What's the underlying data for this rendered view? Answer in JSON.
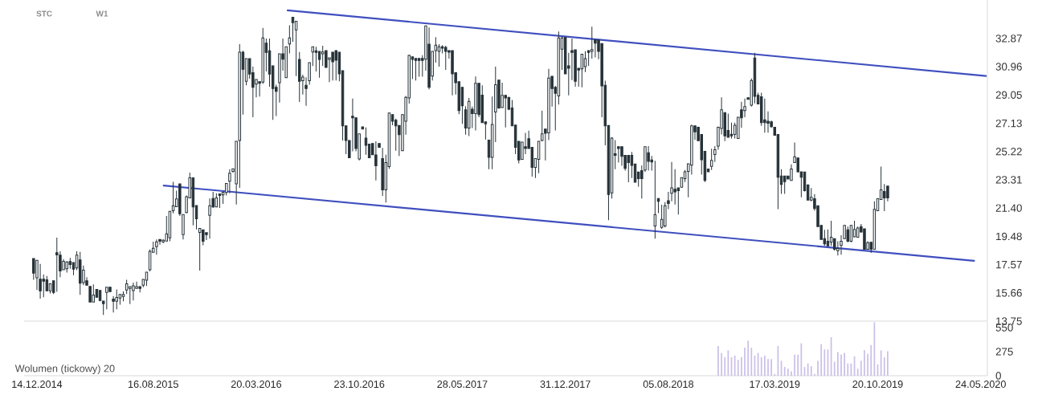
{
  "chart_data": [
    {
      "type": "candlestick",
      "color": "#263238",
      "x": [
        "2014-12-07",
        "2014-12-14",
        "2014-12-21",
        "2014-12-28",
        "2015-01-04",
        "2015-01-11",
        "2015-01-18",
        "2015-01-25",
        "2015-02-01",
        "2015-02-08",
        "2015-02-15",
        "2015-02-22",
        "2015-03-01",
        "2015-03-08",
        "2015-03-15",
        "2015-03-22",
        "2015-03-29",
        "2015-04-05",
        "2015-04-12",
        "2015-04-19",
        "2015-04-26",
        "2015-05-03",
        "2015-05-10",
        "2015-05-17",
        "2015-05-24",
        "2015-05-31",
        "2015-06-07",
        "2015-06-14",
        "2015-06-21",
        "2015-06-28",
        "2015-07-05",
        "2015-07-12",
        "2015-07-19",
        "2015-07-26",
        "2015-08-02",
        "2015-08-09",
        "2015-08-16",
        "2015-08-23",
        "2015-08-30",
        "2015-09-06",
        "2015-09-13",
        "2015-09-20",
        "2015-09-27",
        "2015-10-04",
        "2015-10-11",
        "2015-10-18",
        "2015-10-25",
        "2015-11-01",
        "2015-11-08",
        "2015-11-15",
        "2015-11-22",
        "2015-11-29",
        "2015-12-06",
        "2015-12-13",
        "2015-12-20",
        "2015-12-27",
        "2016-01-03",
        "2016-01-10",
        "2016-01-17",
        "2016-01-24",
        "2016-01-31",
        "2016-02-07",
        "2016-02-14",
        "2016-02-21",
        "2016-02-28",
        "2016-03-06",
        "2016-03-13",
        "2016-03-20",
        "2016-03-27",
        "2016-04-03",
        "2016-04-10",
        "2016-04-17",
        "2016-04-24",
        "2016-05-01",
        "2016-05-08",
        "2016-05-15",
        "2016-05-22",
        "2016-05-29",
        "2016-06-05",
        "2016-06-12",
        "2016-06-19",
        "2016-06-26",
        "2016-07-03",
        "2016-07-10",
        "2016-07-17",
        "2016-07-24",
        "2016-07-31",
        "2016-08-07",
        "2016-08-14",
        "2016-08-21",
        "2016-08-28",
        "2016-09-04",
        "2016-09-11",
        "2016-09-18",
        "2016-09-25",
        "2016-10-02",
        "2016-10-09",
        "2016-10-16",
        "2016-10-23",
        "2016-10-30",
        "2016-11-06",
        "2016-11-13",
        "2016-11-20",
        "2016-11-27",
        "2016-12-04",
        "2016-12-11",
        "2016-12-18",
        "2016-12-25",
        "2017-01-01",
        "2017-01-08",
        "2017-01-15",
        "2017-01-22",
        "2017-01-29",
        "2017-02-05",
        "2017-02-12",
        "2017-02-19",
        "2017-02-26",
        "2017-03-05",
        "2017-03-12",
        "2017-03-19",
        "2017-03-26",
        "2017-04-02",
        "2017-04-09",
        "2017-04-16",
        "2017-04-23",
        "2017-04-30",
        "2017-05-07",
        "2017-05-14",
        "2017-05-21",
        "2017-05-28",
        "2017-06-04",
        "2017-06-11",
        "2017-06-18",
        "2017-06-25",
        "2017-07-02",
        "2017-07-09",
        "2017-07-16",
        "2017-07-23",
        "2017-07-30",
        "2017-08-06",
        "2017-08-13",
        "2017-08-20",
        "2017-08-27",
        "2017-09-03",
        "2017-09-10",
        "2017-09-17",
        "2017-09-24",
        "2017-10-01",
        "2017-10-08",
        "2017-10-15",
        "2017-10-22",
        "2017-10-29",
        "2017-11-05",
        "2017-11-12",
        "2017-11-19",
        "2017-11-26",
        "2017-12-03",
        "2017-12-10",
        "2017-12-17",
        "2017-12-24",
        "2017-12-31",
        "2018-01-07",
        "2018-01-14",
        "2018-01-21",
        "2018-01-28",
        "2018-02-04",
        "2018-02-11",
        "2018-02-18",
        "2018-02-25",
        "2018-03-04",
        "2018-03-11",
        "2018-03-18",
        "2018-03-25",
        "2018-04-01",
        "2018-04-08",
        "2018-04-15",
        "2018-04-22",
        "2018-04-29",
        "2018-05-06",
        "2018-05-13",
        "2018-05-20",
        "2018-05-27",
        "2018-06-03",
        "2018-06-10",
        "2018-06-17",
        "2018-06-24",
        "2018-07-01",
        "2018-07-08",
        "2018-07-15",
        "2018-07-22",
        "2018-07-29",
        "2018-08-05",
        "2018-08-12",
        "2018-08-19",
        "2018-08-26",
        "2018-09-02",
        "2018-09-09",
        "2018-09-16",
        "2018-09-23",
        "2018-09-30",
        "2018-10-07",
        "2018-10-14",
        "2018-10-21",
        "2018-10-28",
        "2018-11-04",
        "2018-11-11",
        "2018-11-18",
        "2018-11-25",
        "2018-12-02",
        "2018-12-09",
        "2018-12-16",
        "2018-12-23",
        "2018-12-30",
        "2019-01-06",
        "2019-01-13",
        "2019-01-20",
        "2019-01-27",
        "2019-02-03",
        "2019-02-10",
        "2019-02-17",
        "2019-02-24",
        "2019-03-03",
        "2019-03-10",
        "2019-03-17",
        "2019-03-24",
        "2019-03-31",
        "2019-04-07",
        "2019-04-14",
        "2019-04-21",
        "2019-04-28",
        "2019-05-05",
        "2019-05-12",
        "2019-05-19",
        "2019-05-26",
        "2019-06-02",
        "2019-06-09",
        "2019-06-16",
        "2019-06-23",
        "2019-06-30",
        "2019-07-07",
        "2019-07-14",
        "2019-07-21",
        "2019-07-28",
        "2019-08-04",
        "2019-08-11",
        "2019-08-18",
        "2019-08-25",
        "2019-09-01",
        "2019-09-08",
        "2019-09-15",
        "2019-09-22",
        "2019-09-29",
        "2019-10-06",
        "2019-10-13",
        "2019-10-20",
        "2019-10-27",
        "2019-11-03",
        "2019-11-10"
      ],
      "ohlc": [
        [
          17.98,
          17.98,
          16.54,
          16.99
        ],
        [
          16.68,
          17.87,
          15.85,
          17.87
        ],
        [
          16.59,
          17.62,
          15.27,
          15.8
        ],
        [
          16.59,
          16.9,
          15.36,
          16.45
        ],
        [
          16.54,
          16.81,
          15.8,
          15.8
        ],
        [
          15.8,
          16.32,
          15.63,
          16.27
        ],
        [
          16.48,
          16.48,
          15.58,
          15.69
        ],
        [
          18.38,
          19.4,
          15.73,
          18.23
        ],
        [
          18.21,
          18.48,
          16.72,
          17.15
        ],
        [
          17.22,
          17.94,
          17.22,
          17.8
        ],
        [
          17.29,
          17.8,
          17.04,
          17.76
        ],
        [
          17.78,
          18.02,
          17.29,
          17.58
        ],
        [
          17.71,
          17.71,
          16.86,
          17.26
        ],
        [
          17.35,
          18.48,
          17.2,
          18.21
        ],
        [
          17.89,
          18.43,
          15.53,
          16.32
        ],
        [
          16.36,
          17.51,
          16.18,
          17.2
        ],
        [
          16.48,
          16.72,
          16.18,
          16.18
        ],
        [
          16.1,
          16.1,
          15.04,
          15.04
        ],
        [
          15.04,
          16.23,
          15.04,
          15.51
        ],
        [
          15.89,
          15.89,
          15.36,
          15.36
        ],
        [
          15.83,
          15.83,
          15.09,
          15.15
        ],
        [
          15.11,
          15.11,
          14.17,
          14.93
        ],
        [
          15.69,
          16.05,
          14.55,
          16.05
        ],
        [
          16.05,
          16.05,
          15.74,
          15.74
        ],
        [
          15.24,
          15.45,
          14.34,
          15.09
        ],
        [
          15.09,
          15.89,
          14.55,
          15.35
        ],
        [
          15.31,
          15.56,
          14.86,
          15.56
        ],
        [
          15.42,
          15.76,
          15.09,
          15.56
        ],
        [
          15.85,
          16.54,
          15.58,
          16.27
        ],
        [
          15.96,
          16.09,
          14.91,
          16.09
        ],
        [
          15.81,
          16.36,
          15.15,
          16.14
        ],
        [
          15.96,
          16.43,
          15.96,
          16.09
        ],
        [
          16.09,
          16.09,
          15.69,
          15.96
        ],
        [
          16.18,
          16.57,
          16.05,
          16.57
        ],
        [
          16.52,
          17.06,
          16.12,
          17.06
        ],
        [
          17.22,
          18.59,
          17.11,
          18.47
        ],
        [
          18.41,
          19.13,
          18.41,
          18.68
        ],
        [
          18.79,
          19.28,
          18.25,
          19.11
        ],
        [
          19.28,
          19.28,
          18.92,
          19.15
        ],
        [
          19.11,
          19.29,
          19.02,
          19.22
        ],
        [
          19.17,
          20.86,
          19.17,
          19.66
        ],
        [
          19.38,
          21.17,
          19.15,
          21.17
        ],
        [
          21.22,
          23.17,
          21.04,
          21.55
        ],
        [
          21.49,
          22.58,
          21.49,
          22.02
        ],
        [
          23.03,
          23.03,
          20.87,
          21.01
        ],
        [
          19.6,
          20.96,
          19.28,
          20.96
        ],
        [
          21.1,
          22.25,
          21.05,
          22.16
        ],
        [
          22.09,
          23.79,
          22.09,
          23.44
        ],
        [
          23.44,
          23.44,
          20.23,
          21.48
        ],
        [
          21.57,
          21.57,
          19.96,
          20.67
        ],
        [
          19.75,
          20.02,
          17.17,
          20.02
        ],
        [
          19.93,
          19.93,
          18.88,
          19.15
        ],
        [
          19.73,
          19.73,
          19.24,
          19.6
        ],
        [
          20.9,
          22.04,
          19.33,
          21.55
        ],
        [
          22.04,
          22.49,
          21.41,
          21.48
        ],
        [
          21.48,
          22.4,
          21.48,
          22.09
        ],
        [
          22.36,
          22.36,
          21.41,
          22.25
        ],
        [
          22.29,
          22.47,
          21.68,
          22.47
        ],
        [
          22.45,
          23.06,
          22.25,
          23.06
        ],
        [
          23.21,
          24.02,
          22.4,
          23.75
        ],
        [
          23.88,
          24.06,
          23.79,
          24.06
        ],
        [
          23.03,
          25.91,
          21.64,
          25.91
        ],
        [
          25.97,
          32.49,
          22.76,
          31.94
        ],
        [
          31.94,
          32.04,
          27.72,
          30.78
        ],
        [
          29.97,
          31.5,
          29.7,
          31.5
        ],
        [
          31.5,
          31.5,
          30.15,
          30.46
        ],
        [
          30.55,
          30.96,
          27.54,
          29.56
        ],
        [
          29.78,
          30.1,
          28.89,
          30.1
        ],
        [
          29.95,
          29.95,
          28.94,
          29.83
        ],
        [
          29.92,
          33.58,
          29.79,
          32.91
        ],
        [
          32.55,
          32.86,
          30.64,
          31.92
        ],
        [
          32.04,
          32.86,
          29.61,
          30.46
        ],
        [
          31.02,
          31.02,
          27.36,
          29.48
        ],
        [
          29.57,
          29.74,
          27.63,
          29.29
        ],
        [
          29.88,
          31.83,
          28.53,
          31.83
        ],
        [
          31.83,
          32.86,
          30.69,
          31.47
        ],
        [
          30.21,
          32.31,
          30.21,
          32.31
        ],
        [
          32.5,
          33.76,
          31.86,
          32.91
        ],
        [
          34.3,
          34.3,
          32.64,
          33.94
        ],
        [
          33.45,
          34.03,
          30.33,
          34.03
        ],
        [
          31.45,
          31.95,
          28.58,
          29.97
        ],
        [
          30.01,
          30.42,
          29.07,
          30.26
        ],
        [
          29.7,
          30.24,
          28.31,
          29.48
        ],
        [
          30.01,
          31.23,
          29.74,
          31.23
        ],
        [
          31.95,
          32.31,
          31.0,
          32.31
        ],
        [
          32.04,
          32.31,
          30.64,
          31.92
        ],
        [
          31.99,
          31.99,
          30.21,
          31.45
        ],
        [
          31.83,
          32.37,
          31.0,
          31.95
        ],
        [
          32.05,
          32.05,
          30.91,
          30.91
        ],
        [
          31.45,
          31.56,
          29.92,
          31.56
        ],
        [
          31.94,
          31.94,
          30.03,
          31.29
        ],
        [
          32.05,
          32.05,
          30.03,
          31.4
        ],
        [
          31.94,
          31.94,
          29.97,
          30.48
        ],
        [
          30.69,
          30.69,
          25.97,
          26.96
        ],
        [
          26.96,
          26.96,
          25.05,
          25.97
        ],
        [
          25.97,
          25.97,
          24.8,
          24.8
        ],
        [
          27.61,
          28.8,
          25.23,
          27.5
        ],
        [
          27.5,
          27.5,
          25.23,
          25.43
        ],
        [
          24.72,
          26.42,
          24.63,
          26.42
        ],
        [
          26.89,
          26.89,
          26.74,
          26.74
        ],
        [
          26.13,
          26.85,
          25.01,
          25.64
        ],
        [
          25.72,
          25.72,
          24.8,
          24.8
        ],
        [
          25.77,
          25.77,
          25.01,
          25.01
        ],
        [
          24.99,
          25.91,
          23.26,
          24.26
        ],
        [
          25.77,
          25.77,
          25.5,
          25.5
        ],
        [
          24.74,
          25.46,
          22.22,
          22.63
        ],
        [
          22.63,
          25.01,
          21.77,
          24.47
        ],
        [
          24.2,
          27.83,
          24.06,
          27.83
        ],
        [
          27.72,
          27.72,
          27.0,
          27.27
        ],
        [
          27.34,
          27.45,
          25.28,
          26.96
        ],
        [
          26.99,
          26.99,
          24.92,
          26.36
        ],
        [
          25.28,
          27.72,
          25.28,
          27.72
        ],
        [
          27.27,
          28.98,
          26.36,
          28.89
        ],
        [
          28.85,
          31.77,
          28.47,
          31.72
        ],
        [
          31.63,
          31.63,
          30.12,
          31.45
        ],
        [
          31.52,
          31.52,
          30.03,
          31.38
        ],
        [
          31.52,
          31.52,
          30.28,
          31.38
        ],
        [
          31.52,
          31.74,
          30.28,
          31.38
        ],
        [
          31.47,
          33.72,
          30.69,
          33.72
        ],
        [
          32.48,
          33.61,
          29.43,
          29.56
        ],
        [
          30.33,
          31.99,
          30.03,
          31.99
        ],
        [
          32.05,
          32.96,
          31.23,
          32.42
        ],
        [
          31.99,
          32.48,
          30.96,
          32.31
        ],
        [
          32.31,
          32.42,
          31.86,
          32.21
        ],
        [
          32.26,
          32.37,
          30.75,
          31.99
        ],
        [
          32.05,
          32.05,
          31.5,
          31.94
        ],
        [
          32.05,
          32.05,
          29.02,
          30.48
        ],
        [
          30.55,
          30.55,
          29.07,
          29.88
        ],
        [
          29.94,
          29.94,
          27.75,
          27.99
        ],
        [
          29.56,
          29.56,
          27.09,
          28.31
        ],
        [
          28.04,
          28.29,
          26.36,
          26.81
        ],
        [
          26.81,
          28.85,
          26.27,
          28.62
        ],
        [
          28.08,
          28.26,
          26.81,
          27.79
        ],
        [
          27.79,
          30.3,
          26.64,
          29.83
        ],
        [
          29.83,
          29.83,
          27.54,
          27.72
        ],
        [
          29.03,
          29.7,
          27.18,
          27.18
        ],
        [
          27.23,
          27.23,
          26.04,
          27.1
        ],
        [
          26.0,
          26.0,
          24.02,
          24.83
        ],
        [
          24.83,
          28.94,
          24.02,
          27.05
        ],
        [
          27.9,
          30.96,
          25.86,
          29.74
        ],
        [
          30.06,
          30.06,
          28.11,
          28.17
        ],
        [
          28.2,
          29.88,
          28.2,
          29.02
        ],
        [
          29.02,
          29.02,
          26.85,
          28.85
        ],
        [
          28.89,
          28.89,
          28.02,
          28.08
        ],
        [
          28.17,
          28.71,
          26.96,
          26.96
        ],
        [
          27.01,
          27.01,
          25.05,
          25.5
        ],
        [
          25.91,
          25.91,
          24.42,
          24.65
        ],
        [
          24.69,
          25.86,
          24.69,
          25.86
        ],
        [
          25.55,
          26.49,
          25.05,
          25.43
        ],
        [
          26.09,
          26.63,
          25.43,
          25.43
        ],
        [
          25.5,
          25.5,
          23.53,
          24.15
        ],
        [
          24.15,
          24.74,
          23.43,
          24.74
        ],
        [
          24.69,
          25.91,
          23.75,
          25.91
        ],
        [
          25.97,
          27.99,
          25.91,
          26.42
        ],
        [
          26.74,
          26.74,
          24.62,
          26.46
        ],
        [
          26.49,
          30.82,
          26.0,
          30.19
        ],
        [
          30.31,
          30.31,
          28.26,
          29.48
        ],
        [
          29.56,
          29.66,
          26.64,
          29.16
        ],
        [
          28.98,
          33.34,
          28.4,
          32.91
        ],
        [
          32.14,
          32.98,
          30.75,
          32.91
        ],
        [
          32.95,
          32.95,
          30.48,
          30.48
        ],
        [
          31.02,
          31.9,
          29.02,
          30.85
        ],
        [
          32.05,
          32.86,
          30.06,
          31.92
        ],
        [
          32.1,
          32.1,
          29.61,
          29.97
        ],
        [
          30.85,
          30.85,
          29.61,
          30.73
        ],
        [
          30.82,
          31.81,
          29.56,
          31.81
        ],
        [
          30.96,
          32.01,
          30.6,
          31.5
        ],
        [
          32.05,
          32.05,
          31.02,
          31.92
        ],
        [
          31.99,
          33.67,
          31.5,
          32.12
        ],
        [
          32.77,
          32.77,
          31.59,
          32.55
        ],
        [
          32.77,
          32.77,
          31.47,
          31.99
        ],
        [
          32.53,
          32.53,
          27.54,
          29.66
        ],
        [
          29.7,
          30.01,
          25.64,
          26.96
        ],
        [
          26.99,
          26.99,
          20.58,
          22.31
        ],
        [
          22.43,
          26.18,
          22.04,
          26.13
        ],
        [
          25.07,
          26.0,
          24.02,
          24.96
        ],
        [
          25.55,
          25.55,
          24.47,
          25.43
        ],
        [
          25.55,
          25.55,
          24.26,
          24.89
        ],
        [
          24.96,
          24.96,
          23.93,
          24.08
        ],
        [
          24.96,
          24.96,
          23.15,
          24.47
        ],
        [
          24.96,
          25.19,
          23.43,
          24.29
        ],
        [
          24.38,
          24.38,
          23.15,
          23.15
        ],
        [
          23.84,
          23.84,
          22.85,
          23.39
        ],
        [
          23.93,
          24.29,
          22.04,
          23.39
        ],
        [
          23.97,
          25.55,
          23.84,
          25.55
        ],
        [
          25.14,
          25.59,
          23.93,
          24.56
        ],
        [
          24.65,
          24.92,
          23.93,
          24.51
        ],
        [
          20.18,
          24.6,
          19.33,
          20.96
        ],
        [
          22.04,
          22.04,
          21.05,
          21.86
        ],
        [
          20.09,
          21.62,
          20.0,
          20.63
        ],
        [
          20.18,
          21.8,
          20.09,
          21.55
        ],
        [
          21.89,
          22.49,
          21.32,
          21.71
        ],
        [
          22.4,
          24.51,
          21.86,
          22.76
        ],
        [
          22.67,
          24.02,
          21.64,
          22.49
        ],
        [
          22.76,
          22.76,
          20.96,
          22.58
        ],
        [
          22.8,
          23.45,
          22.8,
          23.45
        ],
        [
          23.39,
          23.97,
          23.16,
          23.85
        ],
        [
          23.88,
          24.39,
          22.13,
          24.39
        ],
        [
          24.3,
          27.04,
          23.66,
          26.96
        ],
        [
          26.96,
          26.96,
          26.01,
          26.55
        ],
        [
          26.87,
          26.91,
          25.95,
          25.95
        ],
        [
          26.37,
          26.37,
          23.66,
          24.66
        ],
        [
          25.23,
          25.23,
          23.16,
          23.27
        ],
        [
          24.04,
          24.04,
          23.85,
          23.85
        ],
        [
          24.21,
          25.41,
          23.97,
          24.62
        ],
        [
          25.02,
          25.59,
          24.51,
          25.34
        ],
        [
          25.59,
          26.91,
          25.34,
          26.87
        ],
        [
          26.78,
          28.88,
          26.37,
          28.05
        ],
        [
          27.85,
          27.85,
          25.92,
          26.28
        ],
        [
          26.64,
          27.79,
          26.19,
          26.19
        ],
        [
          26.39,
          27.18,
          26.1,
          26.28
        ],
        [
          26.37,
          27.18,
          26.1,
          27.0
        ],
        [
          26.1,
          27.54,
          26.1,
          27.54
        ],
        [
          28.05,
          28.59,
          26.82,
          27.5
        ],
        [
          27.99,
          28.8,
          27.54,
          28.26
        ],
        [
          28.86,
          28.86,
          28.75,
          28.75
        ],
        [
          28.35,
          30.16,
          28.26,
          30.03
        ],
        [
          31.54,
          31.9,
          28.48,
          28.95
        ],
        [
          29.02,
          29.2,
          28.44,
          28.44
        ],
        [
          28.93,
          29.2,
          26.96,
          27.18
        ],
        [
          27.36,
          28.8,
          26.5,
          27.18
        ],
        [
          27.27,
          27.94,
          26.5,
          27.13
        ],
        [
          27.23,
          27.31,
          26.82,
          26.91
        ],
        [
          26.87,
          26.87,
          26.32,
          26.32
        ],
        [
          26.37,
          26.37,
          21.32,
          23.48
        ],
        [
          23.57,
          24.03,
          22.35,
          22.99
        ],
        [
          23.57,
          23.57,
          22.35,
          23.18
        ],
        [
          23.57,
          23.57,
          23.36,
          23.36
        ],
        [
          23.27,
          24.35,
          23.27,
          24.04
        ],
        [
          24.48,
          25.83,
          24.48,
          24.87
        ],
        [
          24.78,
          24.78,
          23.81,
          23.85
        ],
        [
          23.85,
          23.85,
          22.13,
          23.48
        ],
        [
          23.84,
          23.84,
          22.52,
          22.57
        ],
        [
          22.97,
          22.97,
          21.94,
          21.94
        ],
        [
          21.94,
          22.75,
          21.85,
          22.12
        ],
        [
          22.03,
          22.34,
          21.22,
          21.37
        ],
        [
          21.55,
          21.55,
          20.14,
          20.14
        ],
        [
          20.23,
          20.23,
          19.27,
          19.27
        ],
        [
          19.33,
          19.92,
          18.84,
          18.97
        ],
        [
          19.15,
          19.96,
          18.84,
          18.84
        ],
        [
          19.09,
          20.54,
          18.84,
          19.42
        ],
        [
          19.33,
          19.33,
          18.52,
          18.61
        ],
        [
          18.52,
          19.15,
          18.19,
          18.66
        ],
        [
          18.88,
          19.56,
          18.25,
          19.15
        ],
        [
          19.33,
          20.23,
          19.33,
          20.23
        ],
        [
          19.92,
          20.14,
          19.09,
          19.15
        ],
        [
          19.15,
          20.23,
          19.09,
          20.23
        ],
        [
          19.45,
          20.54,
          19.42,
          19.96
        ],
        [
          19.42,
          20.14,
          19.42,
          20.05
        ],
        [
          20.14,
          20.32,
          19.74,
          19.78
        ],
        [
          20.0,
          20.0,
          18.61,
          18.61
        ],
        [
          18.61,
          19.15,
          18.61,
          19.06
        ],
        [
          19.09,
          19.09,
          18.37,
          18.61
        ],
        [
          18.61,
          21.85,
          18.61,
          21.31
        ],
        [
          21.22,
          22.03,
          21.22,
          22.03
        ],
        [
          21.98,
          24.2,
          21.98,
          22.63
        ],
        [
          22.52,
          23.02,
          21.19,
          22.09
        ],
        [
          22.88,
          22.88,
          21.85,
          22.09
        ]
      ],
      "series": [
        {
          "type": "line",
          "color": "#3f4fbf",
          "x": [
            "2016-05-25",
            "2020-06-04"
          ],
          "values": [
            34.77,
            30.33
          ]
        },
        {
          "type": "line",
          "color": "#3f4fbf",
          "x": [
            "2015-09-07",
            "2020-05-10"
          ],
          "values": [
            22.92,
            17.83
          ]
        }
      ],
      "xlim": [
        "2014-11-17",
        "2020-06-07"
      ],
      "ylim": [
        13.75,
        35.47
      ],
      "yticks": [
        13.75,
        15.66,
        17.57,
        19.48,
        {
          "value": 21.4,
          "label": "21.40"
        },
        23.31,
        25.22,
        27.13,
        29.05,
        30.96,
        32.87
      ],
      "tick_labels": "y",
      "annotations": [
        "STC",
        "W1"
      ]
    },
    {
      "type": "bar",
      "color": "#cbbfe8",
      "title": "Wolumen (tickowy) 20",
      "x": [
        "2018-11-18",
        "2018-11-25",
        "2018-12-02",
        "2018-12-09",
        "2018-12-16",
        "2018-12-23",
        "2018-12-30",
        "2019-01-06",
        "2019-01-13",
        "2019-01-20",
        "2019-01-27",
        "2019-02-03",
        "2019-02-10",
        "2019-02-17",
        "2019-02-24",
        "2019-03-03",
        "2019-03-10",
        "2019-03-17",
        "2019-03-24",
        "2019-03-31",
        "2019-04-07",
        "2019-04-14",
        "2019-04-21",
        "2019-04-28",
        "2019-05-05",
        "2019-05-12",
        "2019-05-19",
        "2019-05-26",
        "2019-06-02",
        "2019-06-09",
        "2019-06-16",
        "2019-06-23",
        "2019-06-30",
        "2019-07-07",
        "2019-07-14",
        "2019-07-21",
        "2019-07-28",
        "2019-08-04",
        "2019-08-11",
        "2019-08-18",
        "2019-08-25",
        "2019-09-01",
        "2019-09-08",
        "2019-09-15",
        "2019-09-22",
        "2019-09-29",
        "2019-10-06",
        "2019-10-13",
        "2019-10-20",
        "2019-10-27",
        "2019-11-03",
        "2019-11-10"
      ],
      "values": [
        340,
        260,
        210,
        290,
        210,
        230,
        180,
        210,
        320,
        400,
        320,
        230,
        260,
        210,
        230,
        190,
        190,
        20,
        340,
        170,
        100,
        80,
        50,
        240,
        240,
        370,
        100,
        140,
        110,
        20,
        170,
        360,
        300,
        300,
        440,
        160,
        270,
        240,
        260,
        140,
        140,
        220,
        80,
        170,
        290,
        250,
        350,
        610,
        130,
        290,
        210,
        280
      ],
      "xlim": [
        "2014-11-17",
        "2020-06-07"
      ],
      "ylim": [
        0,
        614
      ],
      "xticks": [
        {
          "value": "2014-12-14",
          "label": "14.12.2014"
        },
        {
          "value": "2015-08-16",
          "label": "16.08.2015"
        },
        {
          "value": "2016-03-20",
          "label": "20.03.2016"
        },
        {
          "value": "2016-10-23",
          "label": "23.10.2016"
        },
        {
          "value": "2017-05-28",
          "label": "28.05.2017"
        },
        {
          "value": "2017-12-31",
          "label": "31.12.2017"
        },
        {
          "value": "2018-08-05",
          "label": "05.08.2018"
        },
        {
          "value": "2019-03-17",
          "label": "17.03.2019"
        },
        {
          "value": "2019-10-20",
          "label": "20.10.2019"
        },
        {
          "value": "2020-05-24",
          "label": "24.05.2020"
        }
      ],
      "yticks": [
        0,
        275,
        550
      ]
    }
  ]
}
